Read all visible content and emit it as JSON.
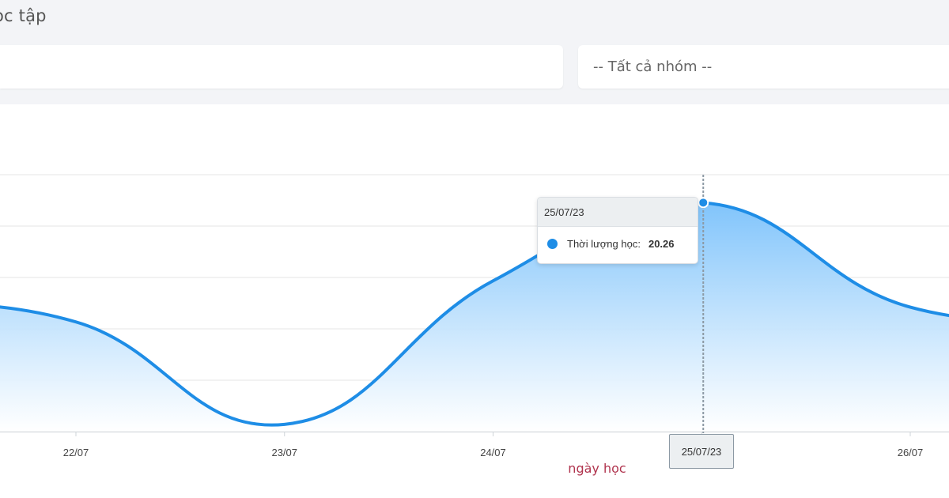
{
  "header": {
    "title": "ọc tập"
  },
  "filters": {
    "group_select": "-- Tất cả nhóm --"
  },
  "colors": {
    "series": "#1e8de6",
    "area_top": "#80c4fb",
    "area_bottom": "#ffffff",
    "grid": "#e6e6e6",
    "axis_title": "#b0344e"
  },
  "chart_data": {
    "type": "area",
    "x": [
      "22/07",
      "23/07",
      "24/07",
      "25/07",
      "26/07"
    ],
    "series": [
      {
        "name": "Thời lượng học",
        "values": [
          12.83,
          6.45,
          15.39,
          20.26,
          13.75
        ]
      }
    ],
    "xlabel": "ngày học",
    "ylim": [
      6,
      22
    ],
    "grid": true,
    "tooltip": {
      "date": "25/07/23",
      "label": "Thời lượng học:",
      "value": "20.26"
    },
    "crosshair_label": "25/07/23"
  }
}
